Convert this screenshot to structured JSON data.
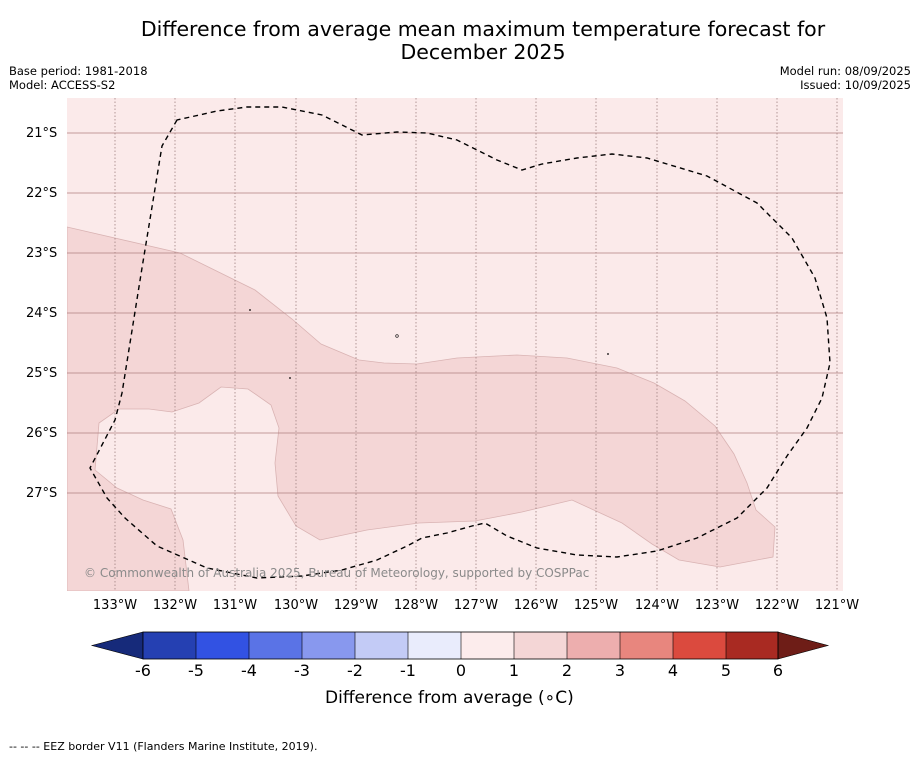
{
  "title_line1": "Difference from average mean maximum temperature forecast for",
  "title_line2": "December 2025",
  "meta_left": {
    "base_period": "Base period: 1981-2018",
    "model": "Model: ACCESS-S2"
  },
  "meta_right": {
    "model_run": "Model run: 08/09/2025",
    "issued": "Issued: 10/09/2025"
  },
  "map": {
    "lat_labels": [
      "21°S",
      "22°S",
      "23°S",
      "24°S",
      "25°S",
      "26°S",
      "27°S"
    ],
    "lon_labels": [
      "133°W",
      "132°W",
      "131°W",
      "130°W",
      "129°W",
      "128°W",
      "127°W",
      "126°W",
      "125°W",
      "124°W",
      "123°W",
      "122°W",
      "121°W"
    ],
    "anomaly_classes_shown": [
      "0 to 1",
      "1 to 2"
    ],
    "colors": {
      "class_0_1": "#fbeaea",
      "class_1_2": "#f4d6d6",
      "eez_border": "#000000"
    },
    "copyright": "© Commonwealth of Australia 2025, Bureau of Meteorology, supported by COSPPac"
  },
  "colorbar": {
    "ticks": [
      "-6",
      "-5",
      "-4",
      "-3",
      "-2",
      "-1",
      "0",
      "1",
      "2",
      "3",
      "4",
      "5",
      "6"
    ],
    "colors": [
      "#162a7a",
      "#2540b2",
      "#3252e3",
      "#5a73e6",
      "#8898ee",
      "#c3cbf6",
      "#e9ecfc",
      "#fcecec",
      "#f4d6d6",
      "#edaeae",
      "#e8867e",
      "#db4a3e",
      "#a92a22",
      "#6e1d17"
    ],
    "title": "Difference from average (∘C)"
  },
  "footer": "--  --  -- EEZ border V11 (Flanders Marine Institute, 2019)."
}
